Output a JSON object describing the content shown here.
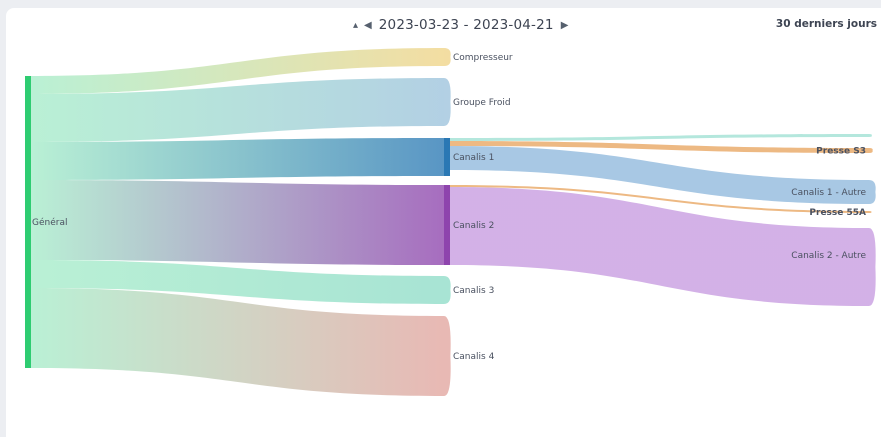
{
  "toolbar": {
    "collapse_icon": "caret-up-icon",
    "prev_icon": "triangle-left-icon",
    "next_icon": "triangle-right-icon",
    "date_range": "2023-03-23 - 2023-04-21",
    "preset_label": "30 derniers jours"
  },
  "chart_data": {
    "type": "sankey",
    "title": "",
    "nodes": [
      {
        "id": "general",
        "label": "Général",
        "color": "#2ecc71"
      },
      {
        "id": "compresseur",
        "label": "Compresseur",
        "color": "#f0d488"
      },
      {
        "id": "groupe_froid",
        "label": "Groupe Froid",
        "color": "#9dc3dc"
      },
      {
        "id": "canalis1",
        "label": "Canalis 1",
        "color": "#2a78b4"
      },
      {
        "id": "canalis2",
        "label": "Canalis 2",
        "color": "#8e44ad"
      },
      {
        "id": "canalis3",
        "label": "Canalis 3",
        "color": "#8fdcc8"
      },
      {
        "id": "canalis4",
        "label": "Canalis 4",
        "color": "#e2a59f"
      },
      {
        "id": "n_top",
        "label": "",
        "color": "#9fe0d3"
      },
      {
        "id": "presse_s3",
        "label": "Presse S3",
        "color": "#e8a560"
      },
      {
        "id": "canalis1_autre",
        "label": "Canalis 1 - Autre",
        "color": "#8fb8dc"
      },
      {
        "id": "presse_55a",
        "label": "Presse 55A",
        "color": "#e8a560"
      },
      {
        "id": "canalis2_autre",
        "label": "Canalis 2 - Autre",
        "color": "#c79be0"
      }
    ],
    "links": [
      {
        "source": "general",
        "target": "compresseur",
        "value": 18
      },
      {
        "source": "general",
        "target": "groupe_froid",
        "value": 48
      },
      {
        "source": "general",
        "target": "canalis1",
        "value": 38
      },
      {
        "source": "general",
        "target": "canalis2",
        "value": 80
      },
      {
        "source": "general",
        "target": "canalis3",
        "value": 28
      },
      {
        "source": "general",
        "target": "canalis4",
        "value": 80
      },
      {
        "source": "canalis1",
        "target": "n_top",
        "value": 3
      },
      {
        "source": "canalis1",
        "target": "presse_s3",
        "value": 5
      },
      {
        "source": "canalis1",
        "target": "canalis1_autre",
        "value": 24
      },
      {
        "source": "canalis2",
        "target": "presse_55a",
        "value": 2
      },
      {
        "source": "canalis2",
        "target": "canalis2_autre",
        "value": 78
      }
    ]
  }
}
